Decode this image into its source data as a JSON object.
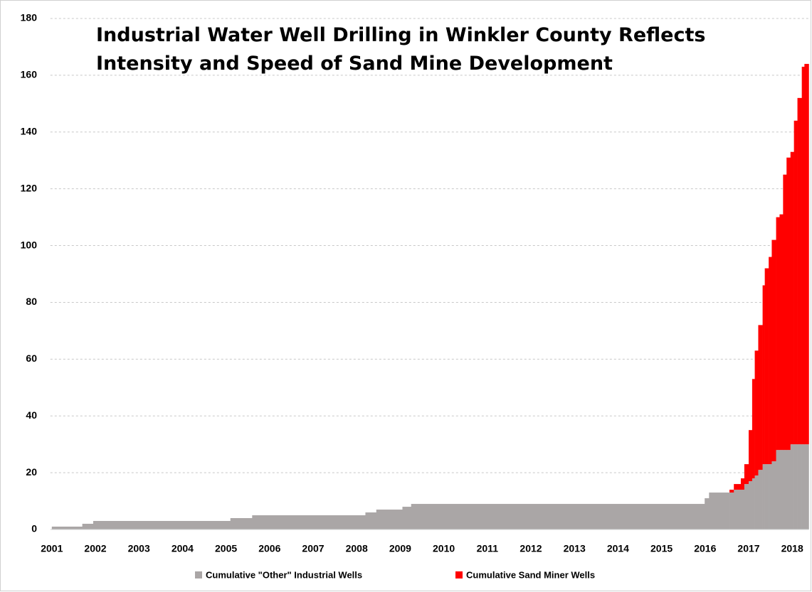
{
  "chart_data": {
    "type": "step-area-stacked",
    "title": [
      "Industrial Water Well Drilling in Winkler County Reflects",
      "Intensity and Speed of Sand Mine Development"
    ],
    "x": [
      2001.0,
      2001.7,
      2001.95,
      2005.1,
      2005.6,
      2008.2,
      2008.45,
      2009.05,
      2009.25,
      2015.99,
      2016.09,
      2016.56,
      2016.66,
      2016.82,
      2016.9,
      2017.0,
      2017.08,
      2017.14,
      2017.22,
      2017.32,
      2017.37,
      2017.46,
      2017.53,
      2017.63,
      2017.71,
      2017.79,
      2017.87,
      2017.96,
      2018.04,
      2018.12,
      2018.22,
      2018.28
    ],
    "series": [
      {
        "name": "Cumulative \"Other\" Industrial Wells",
        "color": "#aaa6a6",
        "values": [
          1,
          2,
          3,
          4,
          5,
          6,
          7,
          8,
          9,
          11,
          13,
          13,
          14,
          14,
          16,
          17,
          18,
          19,
          21,
          23,
          23,
          23,
          24,
          28,
          28,
          28,
          28,
          30,
          30,
          30,
          30,
          30
        ]
      },
      {
        "name": "Cumulative Sand Miner Wells",
        "color": "#ff0000",
        "values": [
          0,
          0,
          0,
          0,
          0,
          0,
          0,
          0,
          0,
          0,
          0,
          1,
          2,
          4,
          7,
          18,
          35,
          44,
          51,
          63,
          69,
          73,
          78,
          82,
          83,
          97,
          103,
          103,
          114,
          122,
          133,
          134
        ]
      }
    ],
    "xlim": [
      2001,
      2018.38
    ],
    "xticks": [
      2001,
      2002,
      2003,
      2004,
      2005,
      2006,
      2007,
      2008,
      2009,
      2010,
      2011,
      2012,
      2013,
      2014,
      2015,
      2016,
      2017,
      2018
    ],
    "ylim": [
      0,
      180
    ],
    "yticks": [
      0,
      20,
      40,
      60,
      80,
      100,
      120,
      140,
      160,
      180
    ],
    "grid": true,
    "legend": "bottom"
  }
}
